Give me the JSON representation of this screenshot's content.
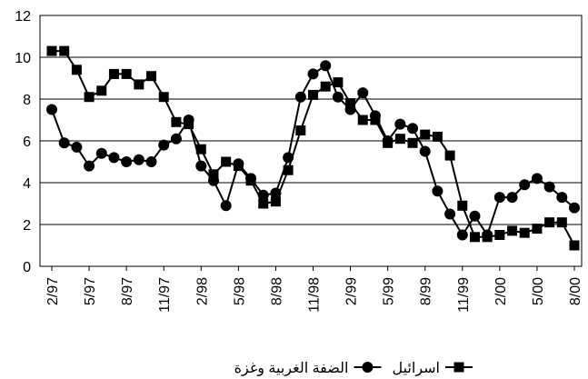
{
  "chart_data": {
    "type": "line",
    "categories": [
      "2/97",
      null,
      null,
      "5/97",
      null,
      null,
      "8/97",
      null,
      null,
      "11/97",
      null,
      null,
      "2/98",
      null,
      null,
      "5/98",
      null,
      null,
      "8/98",
      null,
      null,
      "11/98",
      null,
      null,
      "2/99",
      null,
      null,
      "5/99",
      null,
      null,
      "8/99",
      null,
      null,
      "11/99",
      null,
      null,
      "2/00",
      null,
      null,
      "5/00",
      null,
      null,
      "8/00"
    ],
    "series": [
      {
        "name": "اسرائيل",
        "color": "#000000",
        "marker": "square",
        "values": [
          10.3,
          10.3,
          9.4,
          8.1,
          8.4,
          9.2,
          9.2,
          8.7,
          9.1,
          8.1,
          6.9,
          6.8,
          5.6,
          4.4,
          5.0,
          4.8,
          4.1,
          3.0,
          3.1,
          4.6,
          6.5,
          8.2,
          8.6,
          8.8,
          7.8,
          7.0,
          7.0,
          5.9,
          6.1,
          5.9,
          6.3,
          6.2,
          5.3,
          2.9,
          1.4,
          1.4,
          1.5,
          1.7,
          1.6,
          1.8,
          2.1,
          2.1,
          1.0
        ]
      },
      {
        "name": "الضفة الغربية وغزة",
        "color": "#000000",
        "marker": "circle",
        "values": [
          7.5,
          5.9,
          5.7,
          4.8,
          5.4,
          5.2,
          5.0,
          5.1,
          5.0,
          5.8,
          6.1,
          7.0,
          4.8,
          4.1,
          2.9,
          4.9,
          4.2,
          3.4,
          3.5,
          5.2,
          8.1,
          9.2,
          9.6,
          8.1,
          7.5,
          8.3,
          7.2,
          6.0,
          6.8,
          6.6,
          5.5,
          3.6,
          2.5,
          1.5,
          2.4,
          1.5,
          3.3,
          3.3,
          3.9,
          4.2,
          3.8,
          3.3,
          2.8
        ]
      }
    ],
    "ylim": [
      0,
      12
    ],
    "yticks": [
      0,
      2,
      4,
      6,
      8,
      10,
      12
    ],
    "grid": true
  }
}
